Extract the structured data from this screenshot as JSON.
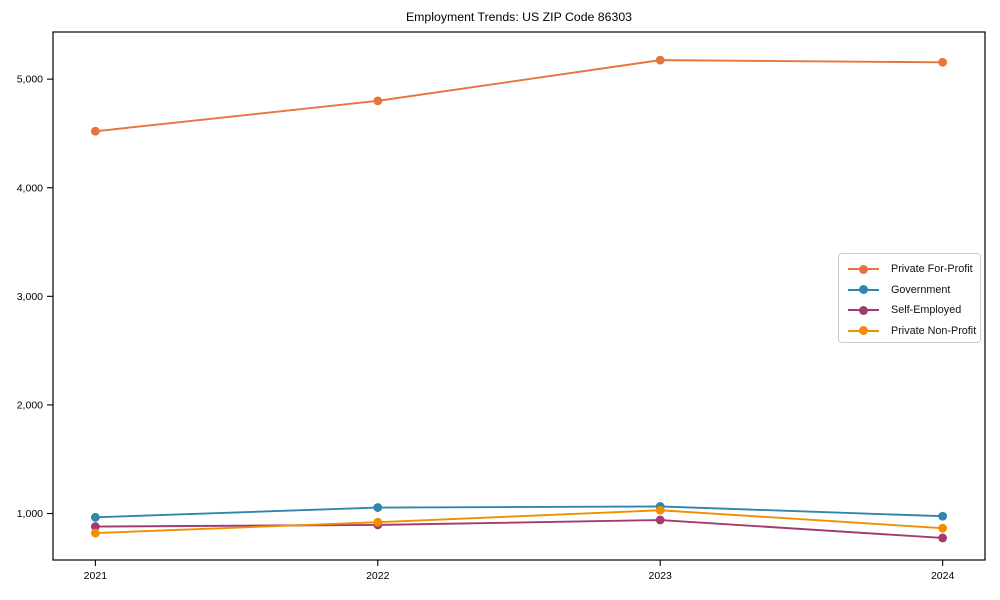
{
  "figure": {
    "title": "Employment Trends: US ZIP Code 86303"
  },
  "chart_data": {
    "type": "line",
    "title": "Employment Trends: US ZIP Code 86303",
    "xlabel": "",
    "ylabel": "",
    "x": [
      2021,
      2022,
      2023,
      2024
    ],
    "x_tick_labels": [
      "2021",
      "2022",
      "2023",
      "2024"
    ],
    "y_ticks": [
      1000,
      2000,
      3000,
      4000,
      5000
    ],
    "y_tick_labels": [
      "1,000",
      "2,000",
      "3,000",
      "4,000",
      "5,000"
    ],
    "xlim": [
      2020.85,
      2024.15
    ],
    "ylim": [
      572,
      5434
    ],
    "grid": false,
    "legend_position": "center-right",
    "series": [
      {
        "name": "Private For-Profit",
        "color": "#E8743B",
        "values": [
          4520,
          4800,
          5175,
          5155
        ]
      },
      {
        "name": "Government",
        "color": "#2E86AB",
        "values": [
          965,
          1055,
          1065,
          975
        ]
      },
      {
        "name": "Self-Employed",
        "color": "#A23B72",
        "values": [
          880,
          895,
          940,
          775
        ]
      },
      {
        "name": "Private Non-Profit",
        "color": "#F18F01",
        "values": [
          820,
          920,
          1030,
          865
        ]
      }
    ]
  }
}
